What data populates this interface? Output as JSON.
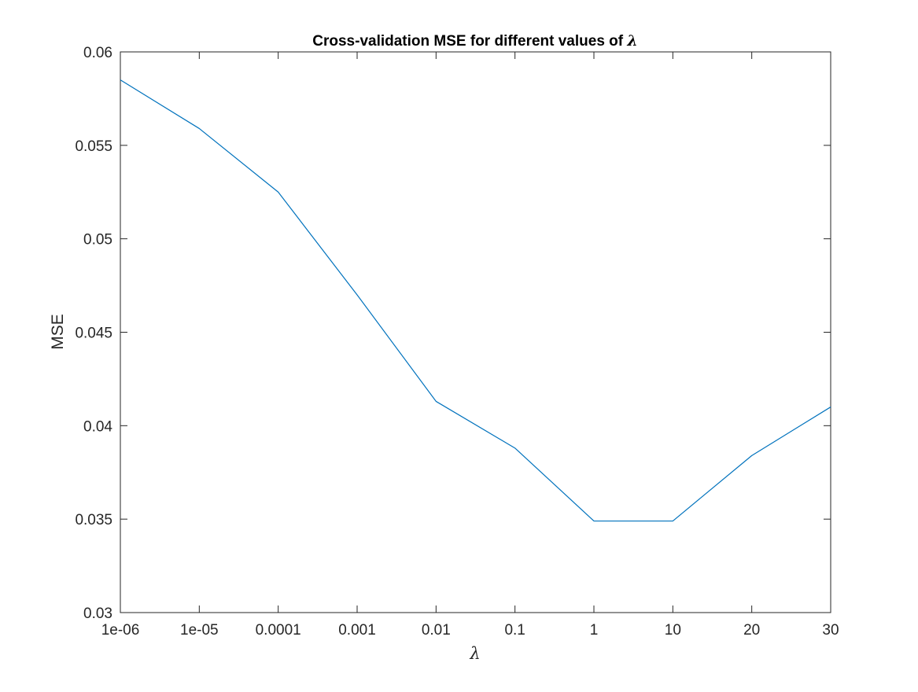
{
  "chart_data": {
    "type": "line",
    "title_prefix": "Cross-validation MSE for different values of ",
    "title_symbol": "λ",
    "xlabel": "λ",
    "ylabel": "MSE",
    "categories": [
      "1e-06",
      "1e-05",
      "0.0001",
      "0.001",
      "0.01",
      "0.1",
      "1",
      "10",
      "20",
      "30"
    ],
    "series": [
      {
        "values": [
          0.0585,
          0.0559,
          0.0525,
          0.047,
          0.0413,
          0.0388,
          0.0349,
          0.0349,
          0.0384,
          0.041
        ],
        "color": "#0072BD"
      }
    ],
    "ylim": [
      0.03,
      0.06
    ],
    "yticks": [
      "0.03",
      "0.035",
      "0.04",
      "0.045",
      "0.05",
      "0.055",
      "0.06"
    ],
    "grid": false,
    "box": true
  }
}
